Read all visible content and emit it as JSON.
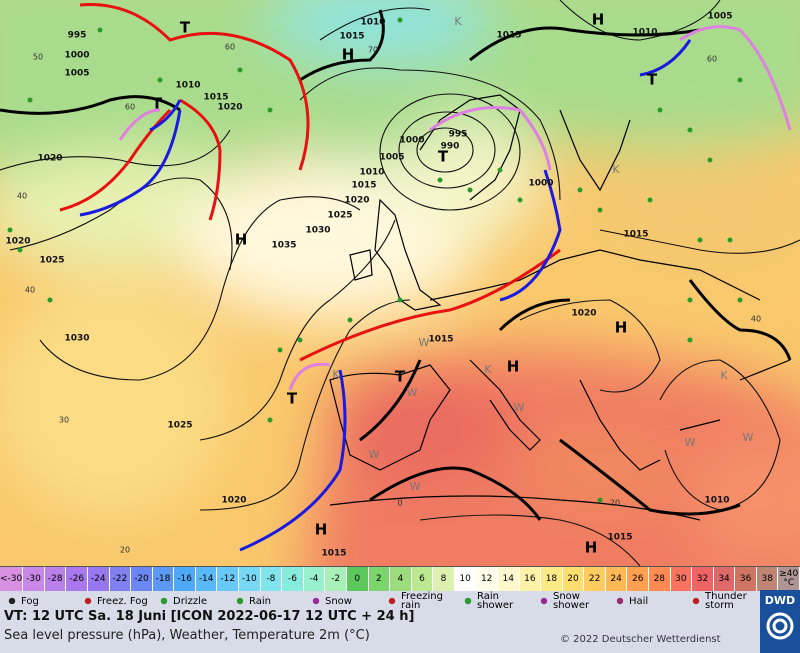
{
  "map": {
    "pressure_labels": [
      995,
      1000,
      1005,
      1010,
      1015,
      1020,
      1020,
      1020,
      1025,
      1030,
      1025,
      1020,
      1035,
      1030,
      1025,
      1020,
      1015,
      1010,
      1005,
      1000,
      995,
      990,
      1010,
      1015,
      1015,
      1010,
      1005,
      1000,
      1015,
      1020,
      1015,
      1010,
      1015,
      1015
    ],
    "temperature_labels": [
      60,
      50,
      40,
      40,
      30,
      20,
      0,
      20,
      40,
      60,
      60,
      70
    ],
    "highs": [
      "H",
      "H",
      "H",
      "H",
      "H",
      "H",
      "H"
    ],
    "lows": [
      "T",
      "T",
      "T",
      "T",
      "T",
      "T"
    ],
    "warm_marks": [
      "W",
      "W",
      "W",
      "W",
      "W",
      "W",
      "W"
    ],
    "cold_marks": [
      "K",
      "K",
      "K",
      "K",
      "K"
    ]
  },
  "scale": {
    "entries": [
      {
        "label": "<-30",
        "color": "#d890e0"
      },
      {
        "label": -30,
        "color": "#c888e8"
      },
      {
        "label": -28,
        "color": "#b880e8"
      },
      {
        "label": -26,
        "color": "#a878ec"
      },
      {
        "label": -24,
        "color": "#9878f0"
      },
      {
        "label": -22,
        "color": "#8080f0"
      },
      {
        "label": -20,
        "color": "#6c88f0"
      },
      {
        "label": -18,
        "color": "#5c98f4"
      },
      {
        "label": -16,
        "color": "#50a8f8"
      },
      {
        "label": -14,
        "color": "#58b8f8"
      },
      {
        "label": -12,
        "color": "#68c8f8"
      },
      {
        "label": -10,
        "color": "#78d8f4"
      },
      {
        "label": -8,
        "color": "#80e4ec"
      },
      {
        "label": -6,
        "color": "#88ecdc"
      },
      {
        "label": -4,
        "color": "#98f0cc"
      },
      {
        "label": -2,
        "color": "#a8f0b8"
      },
      {
        "label": 0,
        "color": "#5cc85c"
      },
      {
        "label": 2,
        "color": "#7cd46c"
      },
      {
        "label": 4,
        "color": "#9cdc7c"
      },
      {
        "label": 6,
        "color": "#bce890"
      },
      {
        "label": 8,
        "color": "#dcf0b0"
      },
      {
        "label": 10,
        "color": "#ffffff"
      },
      {
        "label": 12,
        "color": "#fffcea"
      },
      {
        "label": 14,
        "color": "#fff8cc"
      },
      {
        "label": 16,
        "color": "#fff2a8"
      },
      {
        "label": 18,
        "color": "#ffea88"
      },
      {
        "label": 20,
        "color": "#ffde70"
      },
      {
        "label": 22,
        "color": "#ffcc60"
      },
      {
        "label": 24,
        "color": "#ffb854"
      },
      {
        "label": 26,
        "color": "#ffa050"
      },
      {
        "label": 28,
        "color": "#ff8a54"
      },
      {
        "label": 30,
        "color": "#f87460"
      },
      {
        "label": 32,
        "color": "#ee6464"
      },
      {
        "label": 34,
        "color": "#e06868"
      },
      {
        "label": 36,
        "color": "#d07464"
      },
      {
        "label": 38,
        "color": "#c08474"
      },
      {
        "label": "≥40 °C",
        "color": "#b09494"
      }
    ]
  },
  "legend": [
    "Fog",
    "Freez. Fog",
    "Drizzle",
    "Rain",
    "Snow",
    "Freezing rain",
    "Rain shower",
    "Snow shower",
    "Hail",
    "Thunder storm"
  ],
  "footer": {
    "valid_time": "VT: 12 UTC Sa.  18 Juni [ICON 2022-06-17  12 UTC + 24 h]",
    "description": "Sea level pressure (hPa), Weather, Temperature 2m (°C)",
    "copyright": "© 2022 Deutscher Wetterdienst",
    "logo": "DWD"
  }
}
